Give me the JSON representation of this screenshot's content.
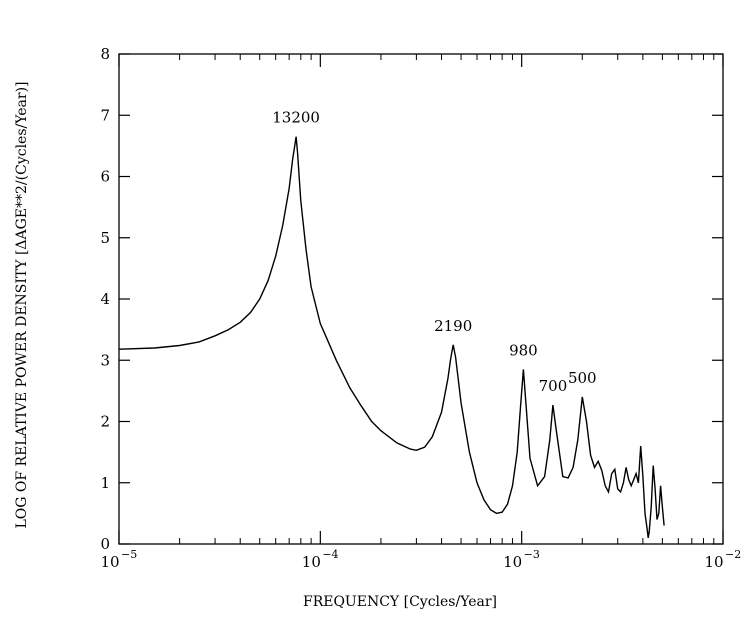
{
  "chart_data": {
    "type": "line",
    "title": "",
    "xlabel": "FREQUENCY  [Cycles/Year]",
    "ylabel": "LOG OF RELATIVE POWER DENSITY [ΔAGE**2/(Cycles/Year)]",
    "xscale": "log",
    "xlim": [
      1e-05,
      0.01
    ],
    "ylim": [
      0,
      8
    ],
    "grid": false,
    "x_ticks": [
      {
        "value": 1e-05,
        "base": "10",
        "exp": "−5"
      },
      {
        "value": 0.0001,
        "base": "10",
        "exp": "−4"
      },
      {
        "value": 0.001,
        "base": "10",
        "exp": "−3"
      },
      {
        "value": 0.01,
        "base": "10",
        "exp": "−2"
      }
    ],
    "y_ticks": [
      "0",
      "1",
      "2",
      "3",
      "4",
      "5",
      "6",
      "7",
      "8"
    ],
    "annotations": [
      {
        "text": "13200",
        "x": 7.58e-05,
        "y": 6.65
      },
      {
        "text": "2190",
        "x": 0.000457,
        "y": 3.25
      },
      {
        "text": "980",
        "x": 0.00102,
        "y": 2.85
      },
      {
        "text": "700",
        "x": 0.00143,
        "y": 2.27
      },
      {
        "text": "500",
        "x": 0.002,
        "y": 2.4
      }
    ],
    "series": [
      {
        "x": [
          1e-05,
          1.5e-05,
          2e-05,
          2.5e-05,
          3e-05,
          3.5e-05,
          4e-05,
          4.5e-05,
          5e-05,
          5.5e-05,
          6e-05,
          6.5e-05,
          7e-05,
          7.3e-05,
          7.5e-05,
          7.58e-05,
          7.7e-05,
          8e-05,
          8.5e-05,
          9e-05,
          0.0001,
          0.00012,
          0.00014,
          0.00016,
          0.00018,
          0.0002,
          0.00024,
          0.00028,
          0.0003,
          0.00033,
          0.00036,
          0.0004,
          0.00043,
          0.000445,
          0.000457,
          0.00047,
          0.0005,
          0.00055,
          0.0006,
          0.00065,
          0.0007,
          0.00075,
          0.0008,
          0.00085,
          0.0009,
          0.00095,
          0.00099,
          0.00102,
          0.00105,
          0.0011,
          0.0012,
          0.0013,
          0.00138,
          0.00143,
          0.00148,
          0.0016,
          0.0017,
          0.0018,
          0.0019,
          0.002,
          0.0021,
          0.0022,
          0.0023,
          0.0024,
          0.0025,
          0.0026,
          0.0027,
          0.0028,
          0.0029,
          0.003,
          0.0031,
          0.0032,
          0.0033,
          0.0034,
          0.0035,
          0.0036,
          0.0037,
          0.0038,
          0.0039,
          0.004,
          0.0041,
          0.0042,
          0.00425,
          0.0043,
          0.0044,
          0.0045,
          0.0046,
          0.0047,
          0.0048,
          0.0049,
          0.005,
          0.0051
        ],
        "values": [
          3.18,
          3.2,
          3.24,
          3.3,
          3.4,
          3.5,
          3.62,
          3.78,
          4.0,
          4.3,
          4.7,
          5.2,
          5.8,
          6.3,
          6.55,
          6.65,
          6.4,
          5.6,
          4.8,
          4.2,
          3.6,
          3.0,
          2.55,
          2.25,
          2.0,
          1.85,
          1.65,
          1.55,
          1.53,
          1.58,
          1.75,
          2.15,
          2.7,
          3.05,
          3.25,
          3.05,
          2.3,
          1.5,
          1.0,
          0.72,
          0.56,
          0.5,
          0.52,
          0.65,
          0.95,
          1.5,
          2.3,
          2.85,
          2.3,
          1.4,
          0.95,
          1.1,
          1.7,
          2.27,
          1.9,
          1.1,
          1.08,
          1.25,
          1.7,
          2.4,
          2.0,
          1.45,
          1.25,
          1.35,
          1.2,
          0.95,
          0.85,
          1.15,
          1.22,
          0.9,
          0.85,
          1.0,
          1.25,
          1.05,
          0.95,
          1.05,
          1.15,
          1.0,
          1.6,
          1.1,
          0.5,
          0.25,
          0.1,
          0.2,
          0.6,
          1.28,
          0.9,
          0.4,
          0.5,
          0.95,
          0.6,
          0.3
        ]
      }
    ]
  }
}
